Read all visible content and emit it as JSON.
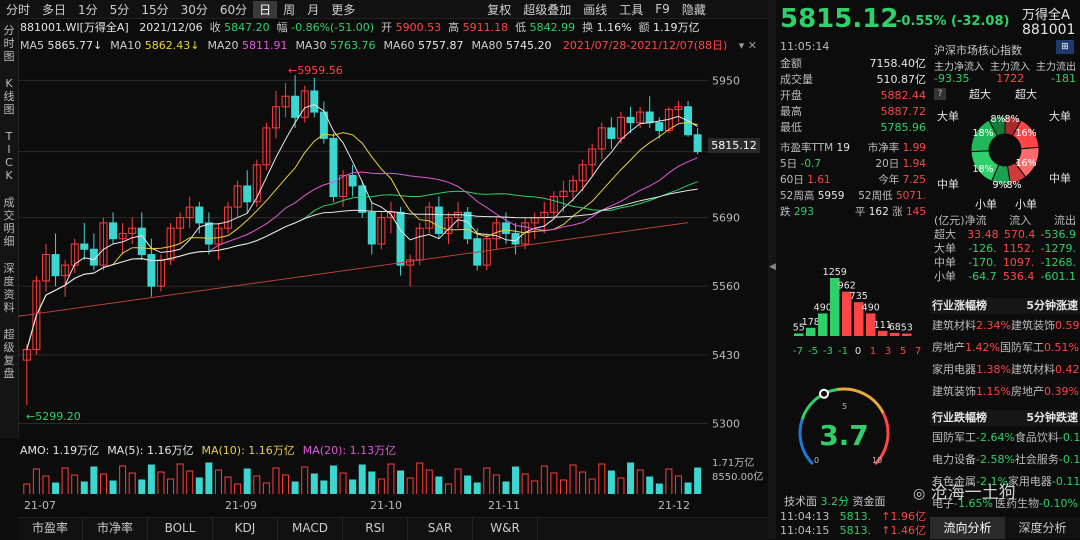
{
  "toolbar": {
    "periods": [
      "分时",
      "多日",
      "1分",
      "5分",
      "15分",
      "30分",
      "60分",
      "日",
      "周",
      "月",
      "更多"
    ],
    "active": "日",
    "tools": [
      "复权",
      "超级叠加",
      "画线",
      "工具",
      "F9",
      "隐藏"
    ]
  },
  "sidebar": [
    "分时图",
    "K线图",
    "TICK",
    "成交明细",
    "深度资料",
    "超级复盘"
  ],
  "info": {
    "code": "881001.WI[万得全A]",
    "date": "2021/12/06",
    "close_label": "收",
    "close": "5847.20",
    "chg_label": "幅",
    "chg": "-0.86%(-51.00)",
    "open_label": "开",
    "open": "5900.53",
    "high_label": "高",
    "high": "5911.18",
    "low_label": "低",
    "low": "5842.99",
    "turn_label": "换",
    "turn": "1.16%",
    "amount_label": "额",
    "amount": "1.19万亿"
  },
  "ma": [
    {
      "label": "MA5",
      "value": "5865.77↓",
      "color": "#e6e6e6"
    },
    {
      "label": "MA10",
      "value": "5862.43↓",
      "color": "#e8d23a"
    },
    {
      "label": "MA20",
      "value": "5811.91",
      "color": "#e05ad8"
    },
    {
      "label": "MA30",
      "value": "5763.76",
      "color": "#2fd06a"
    },
    {
      "label": "MA60",
      "value": "5757.87",
      "color": "#e6e6e6"
    },
    {
      "label": "MA80",
      "value": "5745.20",
      "color": "#e6e6e6"
    },
    {
      "label": "",
      "value": "2021/07/28-2021/12/07(88日)",
      "color": "#ff4545"
    }
  ],
  "chart": {
    "yticks": [
      "5950",
      "5815.12",
      "5690",
      "5560",
      "5430",
      "5300"
    ],
    "max_label": "5959.56",
    "min_label": "5299.20",
    "current_price": "5815.12"
  },
  "chart_data": {
    "type": "candlestick",
    "ylim": [
      5280,
      6000
    ],
    "candles": [
      [
        5420,
        5450,
        5335,
        5440
      ],
      [
        5440,
        5580,
        5430,
        5570
      ],
      [
        5570,
        5640,
        5550,
        5620
      ],
      [
        5620,
        5660,
        5560,
        5580
      ],
      [
        5580,
        5610,
        5540,
        5600
      ],
      [
        5600,
        5650,
        5585,
        5640
      ],
      [
        5640,
        5680,
        5610,
        5630
      ],
      [
        5630,
        5660,
        5590,
        5600
      ],
      [
        5600,
        5690,
        5590,
        5680
      ],
      [
        5680,
        5700,
        5640,
        5650
      ],
      [
        5650,
        5680,
        5620,
        5660
      ],
      [
        5660,
        5690,
        5640,
        5670
      ],
      [
        5670,
        5700,
        5610,
        5620
      ],
      [
        5620,
        5650,
        5540,
        5560
      ],
      [
        5560,
        5620,
        5550,
        5610
      ],
      [
        5610,
        5680,
        5600,
        5670
      ],
      [
        5670,
        5700,
        5640,
        5690
      ],
      [
        5690,
        5730,
        5670,
        5710
      ],
      [
        5710,
        5720,
        5660,
        5680
      ],
      [
        5680,
        5700,
        5620,
        5640
      ],
      [
        5640,
        5680,
        5610,
        5670
      ],
      [
        5670,
        5720,
        5660,
        5710
      ],
      [
        5710,
        5760,
        5690,
        5750
      ],
      [
        5750,
        5780,
        5700,
        5720
      ],
      [
        5720,
        5800,
        5710,
        5790
      ],
      [
        5790,
        5870,
        5780,
        5860
      ],
      [
        5860,
        5930,
        5840,
        5900
      ],
      [
        5900,
        5945,
        5880,
        5920
      ],
      [
        5920,
        5960,
        5860,
        5880
      ],
      [
        5880,
        5940,
        5870,
        5930
      ],
      [
        5930,
        5955,
        5880,
        5890
      ],
      [
        5890,
        5910,
        5830,
        5840
      ],
      [
        5840,
        5850,
        5720,
        5730
      ],
      [
        5730,
        5780,
        5710,
        5770
      ],
      [
        5770,
        5790,
        5730,
        5750
      ],
      [
        5750,
        5760,
        5690,
        5700
      ],
      [
        5700,
        5720,
        5620,
        5640
      ],
      [
        5640,
        5700,
        5630,
        5690
      ],
      [
        5690,
        5720,
        5660,
        5700
      ],
      [
        5700,
        5710,
        5580,
        5600
      ],
      [
        5600,
        5620,
        5560,
        5610
      ],
      [
        5610,
        5680,
        5600,
        5670
      ],
      [
        5670,
        5720,
        5660,
        5710
      ],
      [
        5710,
        5730,
        5650,
        5660
      ],
      [
        5660,
        5700,
        5640,
        5690
      ],
      [
        5690,
        5720,
        5670,
        5700
      ],
      [
        5700,
        5710,
        5640,
        5650
      ],
      [
        5650,
        5670,
        5590,
        5600
      ],
      [
        5600,
        5660,
        5590,
        5650
      ],
      [
        5650,
        5690,
        5630,
        5680
      ],
      [
        5680,
        5700,
        5640,
        5660
      ],
      [
        5660,
        5680,
        5620,
        5640
      ],
      [
        5640,
        5690,
        5630,
        5680
      ],
      [
        5680,
        5700,
        5650,
        5690
      ],
      [
        5690,
        5720,
        5660,
        5700
      ],
      [
        5700,
        5740,
        5690,
        5730
      ],
      [
        5730,
        5760,
        5700,
        5740
      ],
      [
        5740,
        5770,
        5720,
        5760
      ],
      [
        5760,
        5800,
        5740,
        5790
      ],
      [
        5790,
        5830,
        5770,
        5820
      ],
      [
        5820,
        5870,
        5800,
        5860
      ],
      [
        5860,
        5880,
        5820,
        5840
      ],
      [
        5840,
        5890,
        5830,
        5880
      ],
      [
        5880,
        5900,
        5850,
        5870
      ],
      [
        5870,
        5900,
        5860,
        5890
      ],
      [
        5890,
        5920,
        5860,
        5870
      ],
      [
        5870,
        5880,
        5840,
        5855
      ],
      [
        5855,
        5900,
        5850,
        5895
      ],
      [
        5895,
        5911,
        5870,
        5900
      ],
      [
        5900,
        5911,
        5843,
        5847
      ],
      [
        5847,
        5860,
        5810,
        5815
      ]
    ],
    "amo_legend": [
      {
        "label": "AMO: 1.19万亿",
        "color": "#e6e6e6"
      },
      {
        "label": "MA(5): 1.16万亿",
        "color": "#e6e6e6"
      },
      {
        "label": "MA(10): 1.16万亿",
        "color": "#e8d23a"
      },
      {
        "label": "MA(20): 1.13万亿",
        "color": "#e05ad8"
      }
    ],
    "amo_ticks": [
      "1.71万亿",
      "8550.00亿"
    ],
    "xlabels": [
      "21-07",
      "21-09",
      "21-10",
      "21-11",
      "21-12"
    ]
  },
  "bottom_tabs": [
    "市盈率",
    "市净率",
    "BOLL",
    "KDJ",
    "MACD",
    "RSI",
    "SAR",
    "W&R"
  ],
  "quote": {
    "price": "5815.12",
    "chg": "-0.55%",
    "chg_abs": "(-32.08)",
    "name": "万得全A",
    "code": "881001",
    "time": "11:05:14",
    "index_title": "沪深市场核心指数"
  },
  "stats": [
    {
      "label": "金额",
      "value": "7158.40亿",
      "color": "#e6e6e6"
    },
    {
      "label": "成交量",
      "value": "510.87亿",
      "color": "#e6e6e6"
    },
    {
      "label": "开盘",
      "value": "5882.44",
      "color": "#ff4545"
    },
    {
      "label": "最高",
      "value": "5887.72",
      "color": "#ff4545"
    },
    {
      "label": "最低",
      "value": "5785.96",
      "color": "#2fd06a"
    }
  ],
  "stats2": [
    {
      "l1": "市盈率TTM",
      "v1": "19",
      "l2": "市净率",
      "v2": "1.99"
    },
    {
      "l1": "5日",
      "v1": "-0.7",
      "l2": "20日",
      "v2": "1.94"
    },
    {
      "l1": "60日",
      "v1": "1.61",
      "l2": "今年",
      "v2": "7.25"
    },
    {
      "l1": "52周高",
      "v1": "5959",
      "l2": "52周低",
      "v2": "5071."
    },
    {
      "l1": "跌",
      "v1": "293",
      "l2": "平",
      "v2": "162"
    }
  ],
  "up_label": "涨",
  "up_count": "145",
  "dist": {
    "values": [
      "55",
      "178",
      "490",
      "1259",
      "962",
      "735",
      "490",
      "111",
      "68",
      "53"
    ],
    "ticks": [
      "-7",
      "-5",
      "-3",
      "-1",
      "0",
      "1",
      "3",
      "5",
      "7"
    ]
  },
  "gauge": {
    "value": "3.7",
    "ticks": [
      "0",
      "5",
      "10"
    ]
  },
  "techface_label": "技术面",
  "techface_val": "3.2分",
  "fundface_label": "资金面",
  "ticks_list": [
    {
      "time": "11:04:13",
      "price": "5813.",
      "chg": "1.96亿"
    },
    {
      "time": "11:04:15",
      "price": "5813.",
      "chg": "1.46亿"
    }
  ],
  "flow": {
    "header": [
      "主力净流入",
      "主力流入",
      "主力流出"
    ],
    "values": [
      "-93.35",
      "1722",
      "-181"
    ],
    "donut_labels": [
      "超大",
      "超大",
      "大单",
      "大单",
      "中单",
      "中单",
      "小单",
      "小单"
    ],
    "donut_pcts": [
      "8%",
      "8%",
      "18%",
      "16%",
      "18%",
      "16%",
      "9%",
      "8%"
    ],
    "table_header": [
      "(亿元)净流",
      "流入",
      "流出"
    ],
    "rows": [
      {
        "name": "超大",
        "net": "33.48",
        "in": "570.4",
        "out": "-536.9"
      },
      {
        "name": "大单",
        "net": "-126.",
        "in": "1152.",
        "out": "-1279."
      },
      {
        "name": "中单",
        "net": "-170.",
        "in": "1097.",
        "out": "-1268."
      },
      {
        "name": "小单",
        "net": "-64.7",
        "in": "536.4",
        "out": "-601.1"
      }
    ]
  },
  "industry_up": {
    "title1": "行业涨幅榜",
    "title2": "5分钟涨速",
    "rows": [
      {
        "a": "建筑材料",
        "av": "2.34%",
        "b": "建筑装饰",
        "bv": "0.59%"
      },
      {
        "a": "房地产",
        "av": "1.42%",
        "b": "国防军工",
        "bv": "0.51%"
      },
      {
        "a": "家用电器",
        "av": "1.38%",
        "b": "建筑材料",
        "bv": "0.42%"
      },
      {
        "a": "建筑装饰",
        "av": "1.15%",
        "b": "房地产",
        "bv": "0.39%"
      }
    ]
  },
  "industry_down": {
    "title1": "行业跌幅榜",
    "title2": "5分钟跌速",
    "rows": [
      {
        "a": "国防军工",
        "av": "-2.64%",
        "b": "食品饮料",
        "bv": "-0.17%"
      },
      {
        "a": "电力设备",
        "av": "-2.58%",
        "b": "社会服务",
        "bv": "-0.13%"
      },
      {
        "a": "有色金属",
        "av": "-2.1%",
        "b": "家用电器",
        "bv": "-0.11%"
      },
      {
        "a": "电子",
        "av": "-1.65%",
        "b": "医药生物",
        "bv": "-0.10%"
      }
    ]
  },
  "right_tabs": [
    "流向分析",
    "深度分析"
  ],
  "watermark": "沧海一土狗"
}
